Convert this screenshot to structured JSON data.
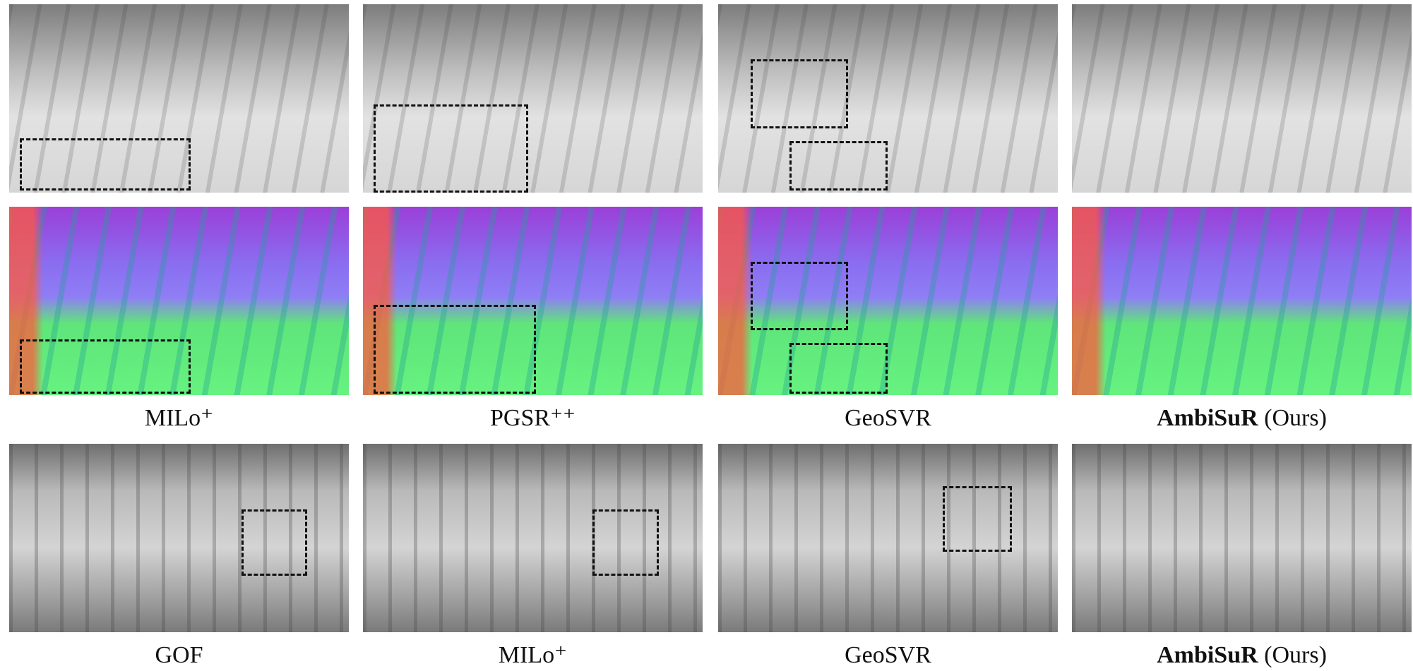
{
  "captions": [
    [
      {
        "name": "MILo⁺"
      },
      {
        "name": "PGSR⁺⁺"
      },
      {
        "name": "GeoSVR"
      },
      {
        "name": "AmbiSuR",
        "note": "(Ours)"
      }
    ],
    [
      {
        "name": "GOF"
      },
      {
        "name": "MILo⁺"
      },
      {
        "name": "GeoSVR"
      },
      {
        "name": "AmbiSuR",
        "note": "(Ours)"
      }
    ]
  ]
}
